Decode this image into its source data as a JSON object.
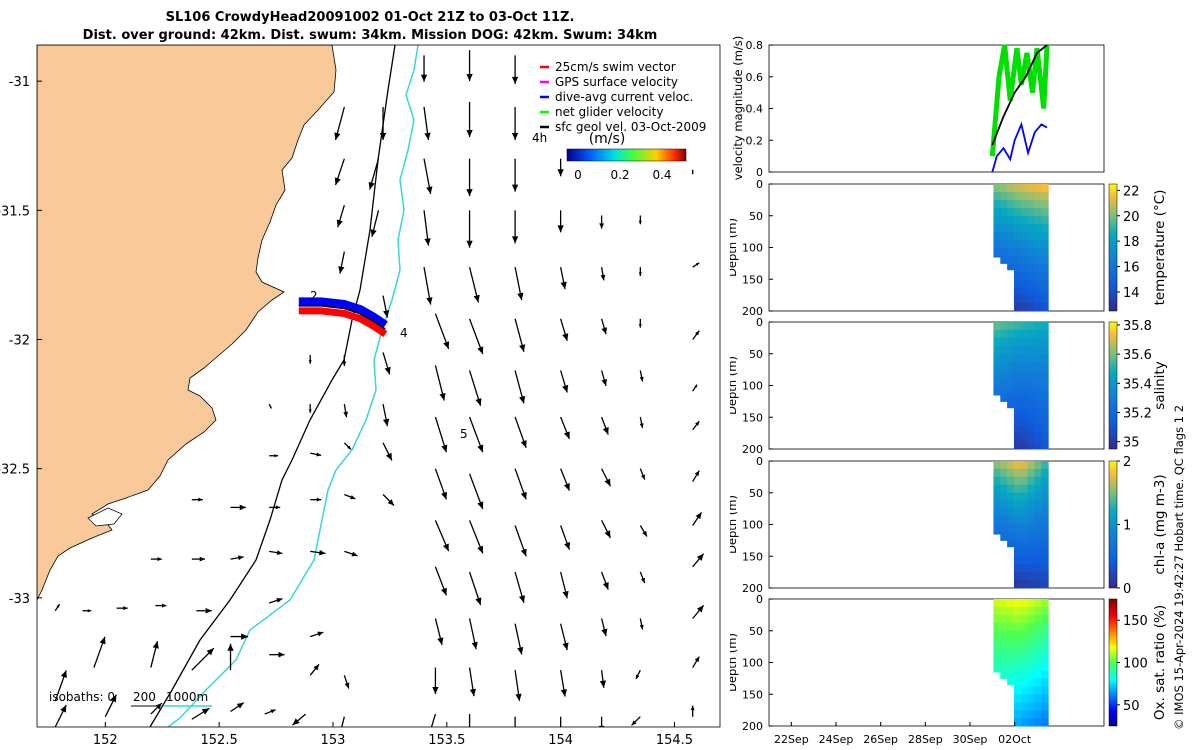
{
  "title": {
    "line1": "SL106 CrowdyHead20091002 01-Oct 21Z to 03-Oct 11Z.",
    "line2": "Dist. over ground: 42km. Dist. swum: 34km. Mission DOG: 42km. Swum: 34km"
  },
  "footer": "© IMOS 15-Apr-2024 19:42:27 Hobart time. QC flags 1  2",
  "colors": {
    "land": "#f9c99a",
    "isobath200": "#000000",
    "isobath1000": "#3ad6d6",
    "arrow": "#000000"
  },
  "chart_data": [
    {
      "id": "map",
      "type": "vector-map",
      "xlim": [
        151.7,
        154.7
      ],
      "ylim": [
        -33.5,
        -30.86
      ],
      "xticks": [
        152,
        152.5,
        153,
        153.5,
        154,
        154.5
      ],
      "xtick_labels": [
        "152",
        "152.5",
        "153",
        "153.5",
        "154",
        "154.5"
      ],
      "yticks": [
        -31,
        -31.5,
        -32,
        -32.5,
        -33
      ],
      "ytick_labels": [
        "-31",
        "-31.5",
        "-32",
        "-32.5",
        "-33"
      ],
      "legend": [
        {
          "label": "25cm/s swim vector",
          "color": "#ff0000"
        },
        {
          "label": "GPS surface velocity",
          "color": "#ff00ff"
        },
        {
          "label": "dive-avg current veloc.",
          "color": "#0000ff"
        },
        {
          "label": "net glider velocity",
          "color": "#00ff00"
        },
        {
          "label": "sfc geol vel. 03-Oct-2009",
          "color": "#000000"
        }
      ],
      "legend_placement": "top-right",
      "colorbar": {
        "label": "(m/s)",
        "ticks": [
          "0",
          "0.2",
          "0.4"
        ],
        "range": [
          0,
          0.5
        ]
      },
      "track_labels": [
        "4h",
        "2",
        "4",
        "5"
      ],
      "isobath_label": {
        "prefix": "isobaths: 0",
        "v200": "200",
        "v1000": "1000m"
      },
      "track": [
        [
          152.85,
          -31.87
        ],
        [
          152.95,
          -31.87
        ],
        [
          153.05,
          -31.88
        ],
        [
          153.12,
          -31.9
        ],
        [
          153.18,
          -31.93
        ],
        [
          153.23,
          -31.96
        ]
      ],
      "vectors": [
        [
          151.78,
          -33.4,
          0.05,
          0.14
        ],
        [
          151.95,
          -33.27,
          0.05,
          0.14
        ],
        [
          152.2,
          -33.27,
          0.03,
          0.12
        ],
        [
          152.38,
          -33.28,
          0.1,
          0.1
        ],
        [
          152.55,
          -33.28,
          0.0,
          0.12
        ],
        [
          152.55,
          -33.15,
          0.08,
          0.0
        ],
        [
          151.78,
          -33.5,
          0.05,
          0.1
        ],
        [
          152.0,
          -33.46,
          0.05,
          0.1
        ],
        [
          152.2,
          -33.45,
          0.05,
          0.05
        ],
        [
          152.38,
          -33.47,
          0.08,
          0.05
        ],
        [
          152.55,
          -33.44,
          0.06,
          0.04
        ],
        [
          152.7,
          -33.45,
          0.05,
          0.02
        ],
        [
          152.72,
          -33.22,
          0.07,
          0.0
        ],
        [
          152.72,
          -33.02,
          0.06,
          0.02
        ],
        [
          152.9,
          -33.15,
          0.06,
          0.02
        ],
        [
          152.9,
          -33.3,
          0.04,
          0.05
        ],
        [
          152.88,
          -33.45,
          -0.06,
          -0.05
        ],
        [
          153.05,
          -33.3,
          0.02,
          -0.06
        ],
        [
          153.05,
          -33.46,
          -0.02,
          -0.08
        ],
        [
          151.9,
          -33.05,
          0.04,
          0.0
        ],
        [
          152.05,
          -33.04,
          0.05,
          0.0
        ],
        [
          152.22,
          -33.03,
          0.05,
          0.0
        ],
        [
          152.4,
          -33.05,
          0.07,
          0.0
        ],
        [
          151.78,
          -33.05,
          0.02,
          0.03
        ],
        [
          152.2,
          -32.85,
          0.05,
          0.0
        ],
        [
          152.38,
          -32.85,
          0.06,
          0.0
        ],
        [
          152.55,
          -32.85,
          0.06,
          0.01
        ],
        [
          152.72,
          -32.82,
          0.06,
          -0.01
        ],
        [
          152.9,
          -32.82,
          0.07,
          -0.01
        ],
        [
          153.05,
          -32.82,
          0.06,
          -0.02
        ],
        [
          152.38,
          -32.62,
          0.05,
          0.0
        ],
        [
          152.55,
          -32.65,
          0.07,
          0.0
        ],
        [
          152.72,
          -32.65,
          0.05,
          0.0
        ],
        [
          152.9,
          -32.62,
          0.05,
          0.0
        ],
        [
          153.05,
          -32.6,
          0.05,
          -0.02
        ],
        [
          153.22,
          -32.6,
          0.05,
          -0.05
        ],
        [
          152.72,
          -32.45,
          0.04,
          0.0
        ],
        [
          152.9,
          -32.44,
          0.05,
          -0.01
        ],
        [
          153.05,
          -32.4,
          0.03,
          -0.03
        ],
        [
          153.22,
          -32.4,
          0.04,
          -0.08
        ],
        [
          153.22,
          -32.25,
          0.02,
          -0.1
        ],
        [
          153.05,
          -32.25,
          0.01,
          -0.06
        ],
        [
          152.9,
          -32.25,
          0.0,
          -0.04
        ],
        [
          152.72,
          -32.25,
          0.01,
          -0.02
        ],
        [
          152.9,
          -32.06,
          0.0,
          -0.04
        ],
        [
          153.05,
          -32.06,
          0.0,
          -0.05
        ],
        [
          153.22,
          -32.05,
          0.03,
          -0.1
        ],
        [
          153.22,
          -31.83,
          0.02,
          -0.1
        ],
        [
          153.05,
          -31.66,
          -0.02,
          -0.1
        ],
        [
          153.05,
          -31.48,
          -0.03,
          -0.1
        ],
        [
          153.2,
          -31.5,
          -0.03,
          -0.12
        ],
        [
          153.05,
          -31.3,
          -0.04,
          -0.12
        ],
        [
          153.2,
          -31.3,
          -0.04,
          -0.14
        ],
        [
          153.05,
          -31.1,
          -0.04,
          -0.15
        ],
        [
          153.22,
          -31.1,
          0.0,
          -0.15
        ],
        [
          153.4,
          -30.9,
          0.0,
          -0.12
        ],
        [
          153.4,
          -31.1,
          0.02,
          -0.15
        ],
        [
          153.4,
          -31.3,
          0.03,
          -0.16
        ],
        [
          153.4,
          -31.5,
          0.02,
          -0.16
        ],
        [
          153.4,
          -31.72,
          0.03,
          -0.17
        ],
        [
          153.45,
          -31.9,
          0.06,
          -0.16
        ],
        [
          153.45,
          -32.1,
          0.04,
          -0.16
        ],
        [
          153.45,
          -32.3,
          0.05,
          -0.16
        ],
        [
          153.45,
          -32.5,
          0.05,
          -0.14
        ],
        [
          153.45,
          -32.7,
          0.06,
          -0.14
        ],
        [
          153.45,
          -32.88,
          0.05,
          -0.13
        ],
        [
          153.45,
          -33.08,
          0.03,
          -0.12
        ],
        [
          153.45,
          -33.27,
          0.0,
          -0.12
        ],
        [
          153.45,
          -33.45,
          -0.03,
          -0.1
        ],
        [
          153.6,
          -30.88,
          0.0,
          -0.14
        ],
        [
          153.6,
          -31.08,
          0.0,
          -0.16
        ],
        [
          153.6,
          -31.3,
          0.0,
          -0.17
        ],
        [
          153.6,
          -31.5,
          0.0,
          -0.17
        ],
        [
          153.6,
          -31.72,
          0.04,
          -0.16
        ],
        [
          153.6,
          -31.92,
          0.06,
          -0.16
        ],
        [
          153.6,
          -32.12,
          0.05,
          -0.16
        ],
        [
          153.6,
          -32.3,
          0.06,
          -0.16
        ],
        [
          153.6,
          -32.52,
          0.06,
          -0.16
        ],
        [
          153.6,
          -32.7,
          0.06,
          -0.15
        ],
        [
          153.6,
          -32.9,
          0.05,
          -0.15
        ],
        [
          153.6,
          -33.08,
          0.03,
          -0.14
        ],
        [
          153.6,
          -33.27,
          0.02,
          -0.13
        ],
        [
          153.6,
          -33.45,
          0.0,
          -0.13
        ],
        [
          153.8,
          -30.9,
          0.0,
          -0.13
        ],
        [
          153.8,
          -31.1,
          0.0,
          -0.15
        ],
        [
          153.8,
          -31.3,
          0.0,
          -0.15
        ],
        [
          153.8,
          -31.5,
          0.0,
          -0.15
        ],
        [
          153.8,
          -31.72,
          0.03,
          -0.15
        ],
        [
          153.8,
          -31.92,
          0.04,
          -0.15
        ],
        [
          153.8,
          -32.12,
          0.04,
          -0.15
        ],
        [
          153.8,
          -32.3,
          0.05,
          -0.14
        ],
        [
          153.8,
          -32.5,
          0.05,
          -0.14
        ],
        [
          153.8,
          -32.72,
          0.05,
          -0.14
        ],
        [
          153.8,
          -32.9,
          0.04,
          -0.14
        ],
        [
          153.8,
          -33.1,
          0.03,
          -0.14
        ],
        [
          153.8,
          -33.28,
          0.02,
          -0.14
        ],
        [
          153.8,
          -33.46,
          0.0,
          -0.14
        ],
        [
          154.0,
          -31.3,
          0.0,
          -0.08
        ],
        [
          154.0,
          -31.5,
          0.0,
          -0.1
        ],
        [
          154.0,
          -31.72,
          0.02,
          -0.1
        ],
        [
          154.0,
          -31.92,
          0.03,
          -0.1
        ],
        [
          154.0,
          -32.12,
          0.03,
          -0.1
        ],
        [
          154.0,
          -32.3,
          0.04,
          -0.1
        ],
        [
          154.0,
          -32.5,
          0.04,
          -0.1
        ],
        [
          154.0,
          -32.72,
          0.04,
          -0.11
        ],
        [
          154.0,
          -32.9,
          0.03,
          -0.12
        ],
        [
          154.0,
          -33.1,
          0.03,
          -0.12
        ],
        [
          154.0,
          -33.28,
          0.02,
          -0.12
        ],
        [
          154.0,
          -33.46,
          0.0,
          -0.11
        ],
        [
          154.18,
          -31.52,
          0.0,
          -0.06
        ],
        [
          154.18,
          -31.72,
          0.01,
          -0.06
        ],
        [
          154.18,
          -31.92,
          0.02,
          -0.07
        ],
        [
          154.18,
          -32.12,
          0.02,
          -0.07
        ],
        [
          154.18,
          -32.3,
          0.03,
          -0.08
        ],
        [
          154.18,
          -32.5,
          0.04,
          -0.08
        ],
        [
          154.18,
          -32.7,
          0.04,
          -0.08
        ],
        [
          154.18,
          -32.9,
          0.03,
          -0.08
        ],
        [
          154.18,
          -33.08,
          0.02,
          -0.08
        ],
        [
          154.18,
          -33.28,
          0.01,
          -0.08
        ],
        [
          154.18,
          -33.46,
          0.0,
          -0.07
        ],
        [
          154.35,
          -31.52,
          0.0,
          -0.04
        ],
        [
          154.35,
          -31.72,
          0.0,
          -0.04
        ],
        [
          154.35,
          -31.92,
          0.0,
          -0.04
        ],
        [
          154.35,
          -32.12,
          0.01,
          -0.05
        ],
        [
          154.35,
          -32.3,
          0.01,
          -0.05
        ],
        [
          154.35,
          -32.5,
          0.02,
          -0.05
        ],
        [
          154.35,
          -32.72,
          0.03,
          -0.05
        ],
        [
          154.35,
          -32.9,
          0.02,
          -0.05
        ],
        [
          154.35,
          -33.08,
          0.01,
          -0.05
        ],
        [
          154.35,
          -33.28,
          -0.02,
          -0.04
        ],
        [
          154.35,
          -33.46,
          -0.04,
          -0.04
        ],
        [
          154.58,
          -31.36,
          0.0,
          0.02
        ],
        [
          154.58,
          -31.72,
          0.03,
          0.02
        ],
        [
          154.58,
          -32.0,
          0.03,
          0.04
        ],
        [
          154.58,
          -32.2,
          0.02,
          0.03
        ],
        [
          154.58,
          -32.35,
          0.03,
          0.04
        ],
        [
          154.58,
          -32.55,
          0.03,
          0.05
        ],
        [
          154.58,
          -32.72,
          0.04,
          0.06
        ],
        [
          154.58,
          -32.88,
          0.05,
          0.06
        ],
        [
          154.58,
          -33.08,
          0.05,
          0.06
        ],
        [
          154.58,
          -33.27,
          0.03,
          0.05
        ],
        [
          154.58,
          -33.46,
          0.0,
          0.05
        ]
      ]
    },
    {
      "id": "velocity",
      "type": "line",
      "ylabel": "velocity magnitude (m/s)",
      "ylim": [
        0,
        0.8
      ],
      "yticks": [
        0,
        0.2,
        0.4,
        0.6,
        0.8
      ],
      "ytick_labels": [
        "0",
        "0.2",
        "0.4",
        "0.6",
        "0.8"
      ],
      "xlim": [
        0,
        15
      ],
      "xticks": [
        1,
        3,
        5,
        7,
        9,
        11
      ],
      "xtick_labels": [
        "22Sep",
        "24Sep",
        "26Sep",
        "28Sep",
        "30Sep",
        "02Oct"
      ],
      "series": [
        {
          "color": "#00e000",
          "x": [
            10.0,
            10.3,
            10.55,
            10.8,
            11.1,
            11.3,
            11.55,
            11.8,
            12.0,
            12.3,
            12.45
          ],
          "y": [
            0.1,
            0.6,
            0.8,
            0.45,
            0.78,
            0.55,
            0.75,
            0.5,
            0.78,
            0.4,
            0.8
          ]
        },
        {
          "color": "#000000",
          "x": [
            10.0,
            10.5,
            11.0,
            11.5,
            12.0,
            12.45
          ],
          "y": [
            0.17,
            0.35,
            0.5,
            0.6,
            0.75,
            0.8
          ]
        },
        {
          "color": "#0000ff",
          "x": [
            10.0,
            10.2,
            10.5,
            10.8,
            11.0,
            11.3,
            11.6,
            11.9,
            12.2,
            12.45
          ],
          "y": [
            0.0,
            0.1,
            0.15,
            0.08,
            0.2,
            0.3,
            0.12,
            0.25,
            0.3,
            0.28
          ]
        }
      ]
    },
    {
      "id": "temperature",
      "type": "heatmap",
      "ylabel": "Depth (m)",
      "clabel": "temperature (°C)",
      "yticks": [
        0,
        50,
        100,
        150,
        200
      ],
      "ylim": [
        0,
        200
      ],
      "cticks": [
        14,
        16,
        18,
        20,
        22
      ],
      "clim": [
        12.5,
        22.5
      ],
      "profile": {
        "top": [
          20.5,
          21.5,
          22
        ],
        "bottom": [
          12.8,
          13.2,
          14
        ]
      }
    },
    {
      "id": "salinity",
      "type": "heatmap",
      "ylabel": "Depth (m)",
      "clabel": "salinity",
      "yticks": [
        0,
        50,
        100,
        150,
        200
      ],
      "ylim": [
        0,
        200
      ],
      "cticks": [
        35,
        35.2,
        35.4,
        35.6,
        35.8
      ],
      "clim": [
        34.95,
        35.82
      ],
      "profile": {
        "top": [
          35.6,
          35.55,
          35.5
        ],
        "bottom": [
          35.05,
          35.0,
          35.1
        ]
      }
    },
    {
      "id": "chla",
      "type": "heatmap",
      "ylabel": "Depth (m)",
      "clabel": "chl-a (mg m-3)",
      "yticks": [
        0,
        50,
        100,
        150,
        200
      ],
      "ylim": [
        0,
        200
      ],
      "cticks": [
        0,
        1,
        2
      ],
      "clim": [
        0,
        2
      ],
      "profile": {
        "top": [
          1.6,
          1.9,
          1.4
        ],
        "bottom": [
          0.05,
          0.1,
          0.2
        ]
      }
    },
    {
      "id": "oxygen",
      "type": "heatmap",
      "ylabel": "Depth (m)",
      "clabel": "Ox. sat. ratio (%)",
      "yticks": [
        0,
        50,
        100,
        150,
        200
      ],
      "ylim": [
        0,
        200
      ],
      "cticks": [
        50,
        100,
        150
      ],
      "clim": [
        25,
        175
      ],
      "profile": {
        "top": [
          115,
          120,
          110
        ],
        "bottom": [
          70,
          65,
          60
        ]
      }
    }
  ]
}
